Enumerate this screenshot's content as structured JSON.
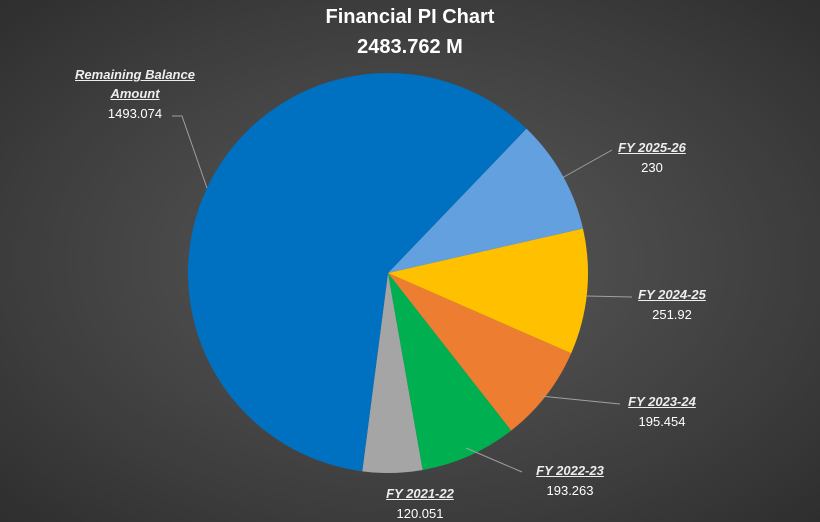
{
  "chart_data": {
    "type": "pie",
    "title": "Financial PI Chart",
    "subtitle": "2483.762 M",
    "categories": [
      "FY 2021-22",
      "FY 2022-23",
      "FY 2023-24",
      "FY 2024-25",
      "FY 2025-26",
      "Remaining Balance Amount"
    ],
    "values": [
      120.051,
      193.263,
      195.454,
      251.92,
      230,
      1493.074
    ],
    "colors": [
      "#a5a5a5",
      "#00b050",
      "#ed7d31",
      "#ffc000",
      "#62a0e0",
      "#0070c0"
    ]
  }
}
